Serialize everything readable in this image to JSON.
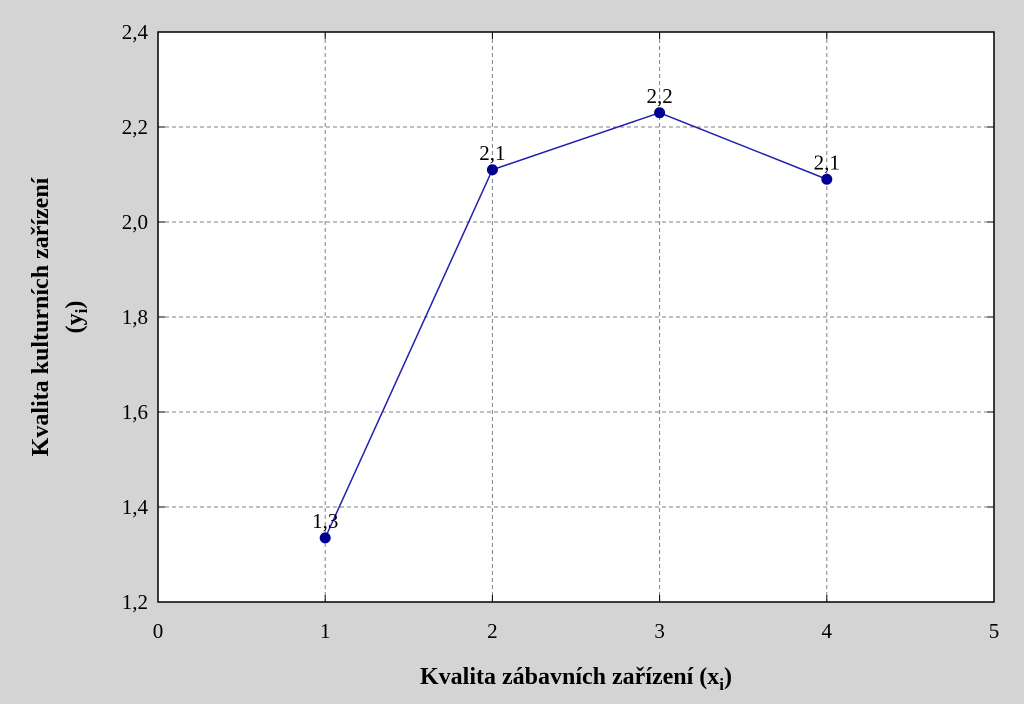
{
  "chart_data": {
    "type": "line",
    "title": "",
    "xlabel": "Kvalita zábavních zařízení (x",
    "xlabel_sub": "i",
    "xlabel_close": ")",
    "ylabel_line1": "Kvalita kulturních zařízení",
    "ylabel_line2": "(y",
    "ylabel_sub": "i",
    "ylabel_close": ")",
    "xlim": [
      0,
      5
    ],
    "ylim": [
      1.2,
      2.4
    ],
    "xticks": [
      0,
      1,
      2,
      3,
      4,
      5
    ],
    "xtick_labels": [
      "0",
      "1",
      "2",
      "3",
      "4",
      "5"
    ],
    "yticks": [
      1.2,
      1.4,
      1.6,
      1.8,
      2.0,
      2.2,
      2.4
    ],
    "ytick_labels": [
      "1,2",
      "1,4",
      "1,6",
      "1,8",
      "2,0",
      "2,2",
      "2,4"
    ],
    "grid": true,
    "series": [
      {
        "color": "#2020b0",
        "marker_color": "#000090",
        "x": [
          1,
          2,
          3,
          4
        ],
        "values": [
          1.335,
          2.11,
          2.23,
          2.09
        ],
        "data_labels": [
          "1,3",
          "2,1",
          "2,2",
          "2,1"
        ]
      }
    ]
  }
}
